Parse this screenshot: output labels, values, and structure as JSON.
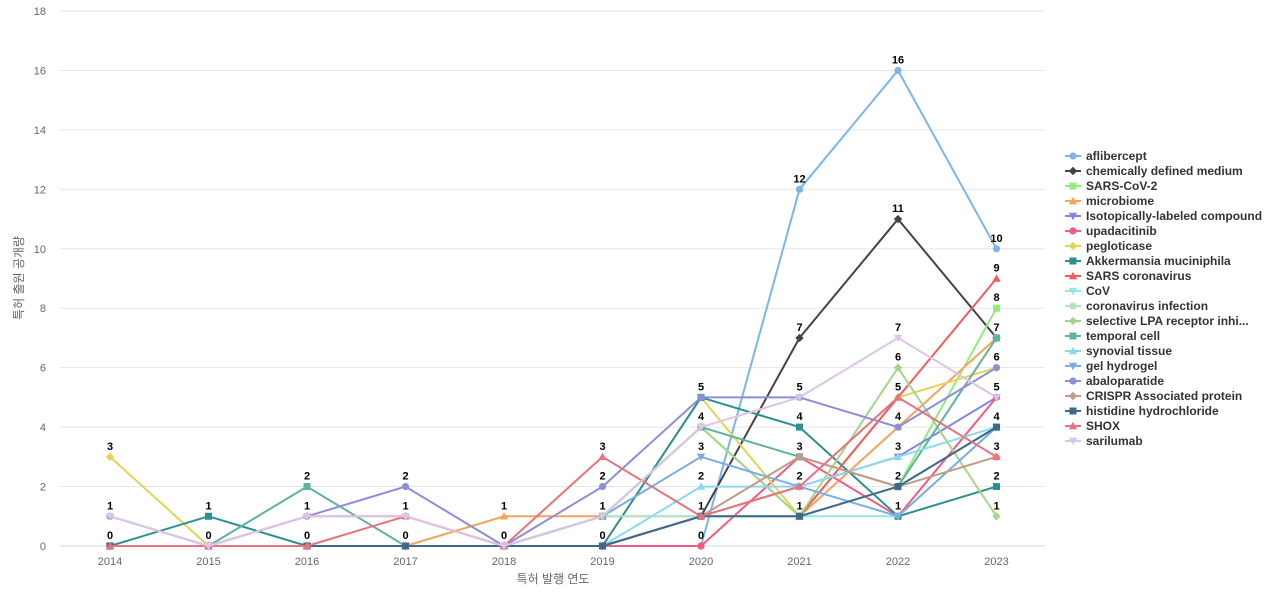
{
  "chart_data": {
    "type": "line",
    "title": "",
    "xlabel": "특허 발행 연도",
    "ylabel": "특허 출원 공개량",
    "ylim": [
      0,
      18
    ],
    "yticks": [
      0,
      2,
      4,
      6,
      8,
      10,
      12,
      14,
      16,
      18
    ],
    "x": [
      "2014",
      "2015",
      "2016",
      "2017",
      "2018",
      "2019",
      "2020",
      "2021",
      "2022",
      "2023"
    ],
    "grid": true,
    "legend_position": "right",
    "series": [
      {
        "name": "aflibercept",
        "color": "#7cb5ec",
        "marker": "circle",
        "values": [
          0,
          0,
          0,
          0,
          0,
          0,
          0,
          12,
          16,
          10
        ]
      },
      {
        "name": "chemically defined medium",
        "color": "#434348",
        "marker": "diamond",
        "values": [
          0,
          0,
          0,
          0,
          0,
          0,
          1,
          7,
          11,
          7
        ]
      },
      {
        "name": "SARS-CoV-2",
        "color": "#90ed7d",
        "marker": "square",
        "values": [
          0,
          0,
          0,
          0,
          0,
          1,
          1,
          1,
          2,
          8
        ]
      },
      {
        "name": "microbiome",
        "color": "#f7a35c",
        "marker": "triangle",
        "values": [
          0,
          0,
          0,
          0,
          1,
          1,
          4,
          1,
          4,
          7
        ]
      },
      {
        "name": "Isotopically-labeled compound",
        "color": "#8085e9",
        "marker": "triangle-down",
        "values": [
          0,
          0,
          0,
          0,
          0,
          0,
          1,
          2,
          3,
          5
        ]
      },
      {
        "name": "upadacitinib",
        "color": "#f15c80",
        "marker": "circle",
        "values": [
          0,
          0,
          0,
          0,
          0,
          0,
          0,
          3,
          1,
          5
        ]
      },
      {
        "name": "pegloticase",
        "color": "#e4d354",
        "marker": "diamond",
        "values": [
          3,
          0,
          0,
          0,
          0,
          0,
          5,
          1,
          5,
          6
        ]
      },
      {
        "name": "Akkermansia muciniphila",
        "color": "#2b908f",
        "marker": "square",
        "values": [
          0,
          1,
          0,
          0,
          0,
          0,
          5,
          4,
          1,
          2
        ]
      },
      {
        "name": "SARS coronavirus",
        "color": "#f45b5b",
        "marker": "triangle",
        "values": [
          0,
          0,
          0,
          0,
          0,
          0,
          1,
          1,
          5,
          9
        ]
      },
      {
        "name": "CoV",
        "color": "#91e8e1",
        "marker": "triangle-down",
        "values": [
          0,
          0,
          0,
          0,
          0,
          0,
          1,
          1,
          1,
          4
        ]
      },
      {
        "name": "coronavirus infection",
        "color": "#b5dfc9",
        "marker": "circle",
        "values": [
          0,
          0,
          0,
          0,
          0,
          1,
          1,
          1,
          2,
          4
        ]
      },
      {
        "name": "selective LPA receptor inhi...",
        "color": "#a5d58d",
        "marker": "diamond",
        "values": [
          0,
          0,
          0,
          0,
          0,
          1,
          4,
          1,
          6,
          1
        ]
      },
      {
        "name": "temporal cell",
        "color": "#5fb39d",
        "marker": "square",
        "values": [
          0,
          0,
          2,
          0,
          0,
          1,
          4,
          3,
          2,
          7
        ]
      },
      {
        "name": "synovial tissue",
        "color": "#8dd9ec",
        "marker": "triangle",
        "values": [
          0,
          0,
          0,
          0,
          0,
          0,
          2,
          2,
          3,
          4
        ]
      },
      {
        "name": "gel hydrogel",
        "color": "#7aaee4",
        "marker": "triangle-down",
        "values": [
          0,
          0,
          0,
          0,
          0,
          1,
          3,
          2,
          1,
          4
        ]
      },
      {
        "name": "abaloparatide",
        "color": "#8a8fd9",
        "marker": "circle",
        "values": [
          1,
          0,
          1,
          2,
          0,
          2,
          5,
          5,
          4,
          6
        ]
      },
      {
        "name": "CRISPR Associated protein",
        "color": "#c59a84",
        "marker": "diamond",
        "values": [
          0,
          0,
          1,
          1,
          0,
          0,
          1,
          3,
          2,
          3
        ]
      },
      {
        "name": "histidine hydrochloride",
        "color": "#3d6a8c",
        "marker": "square",
        "values": [
          0,
          0,
          0,
          0,
          0,
          0,
          1,
          1,
          2,
          4
        ]
      },
      {
        "name": "SHOX",
        "color": "#e8737c",
        "marker": "triangle",
        "values": [
          0,
          0,
          0,
          1,
          0,
          3,
          1,
          2,
          5,
          3
        ]
      },
      {
        "name": "sarilumab",
        "color": "#dcc5e6",
        "marker": "triangle-down",
        "values": [
          1,
          0,
          1,
          1,
          0,
          1,
          4,
          5,
          7,
          5
        ]
      }
    ],
    "data_labels": [
      {
        "x": "2014",
        "values": [
          3,
          1,
          0
        ]
      },
      {
        "x": "2015",
        "values": [
          1,
          0
        ]
      },
      {
        "x": "2016",
        "values": [
          2,
          1,
          0
        ]
      },
      {
        "x": "2017",
        "values": [
          2,
          1,
          0
        ]
      },
      {
        "x": "2018",
        "values": [
          1,
          0
        ]
      },
      {
        "x": "2019",
        "values": [
          3,
          2,
          1,
          0
        ]
      },
      {
        "x": "2020",
        "values": [
          5,
          4,
          3,
          2,
          1,
          0
        ]
      },
      {
        "x": "2021",
        "values": [
          12,
          7,
          5,
          4,
          3,
          2,
          1
        ]
      },
      {
        "x": "2022",
        "values": [
          16,
          11,
          7,
          6,
          5,
          4,
          3,
          2,
          1
        ]
      },
      {
        "x": "2023",
        "values": [
          10,
          9,
          8,
          7,
          6,
          5,
          4,
          3,
          2,
          1
        ]
      }
    ]
  }
}
